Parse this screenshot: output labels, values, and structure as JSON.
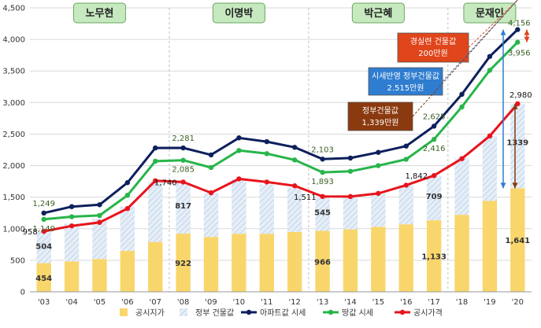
{
  "chart_data": {
    "type": "bar+line",
    "categories": [
      "'03",
      "'04",
      "'05",
      "'06",
      "'07",
      "'08",
      "'09",
      "'10",
      "'11",
      "'12",
      "'13",
      "'14",
      "'15",
      "'16",
      "'17",
      "'18",
      "'19",
      "'20"
    ],
    "ylim": [
      0,
      4500
    ],
    "yticks": [
      "0",
      "500",
      "1,000",
      "1,500",
      "2,000",
      "2,500",
      "3,000",
      "3,500",
      "4,000",
      "4,500"
    ],
    "grid": "horizontal",
    "legend_position": "bottom",
    "eras": [
      {
        "label": "노무현",
        "start": 0,
        "end": 4
      },
      {
        "label": "이명박",
        "start": 5,
        "end": 9
      },
      {
        "label": "박근혜",
        "start": 10,
        "end": 14
      },
      {
        "label": "문재인",
        "start": 15,
        "end": 17
      }
    ],
    "series": [
      {
        "name": "공시지가",
        "kind": "bar",
        "color": "#f9d66b",
        "values": [
          454,
          480,
          520,
          650,
          790,
          922,
          870,
          920,
          920,
          950,
          966,
          990,
          1030,
          1070,
          1133,
          1220,
          1440,
          1641
        ]
      },
      {
        "name": "정부 건물값",
        "kind": "bar",
        "color": "#dde7f3",
        "values": [
          504,
          600,
          640,
          700,
          960,
          817,
          700,
          860,
          780,
          700,
          545,
          520,
          520,
          620,
          709,
          900,
          1030,
          1339
        ]
      },
      {
        "name": "아파트값 시세",
        "kind": "line",
        "color": "#0d1f5c",
        "values": [
          1249,
          1350,
          1380,
          1730,
          2280,
          2281,
          2170,
          2440,
          2380,
          2290,
          2103,
          2120,
          2210,
          2310,
          2625,
          3130,
          3730,
          4156
        ]
      },
      {
        "name": "땅값 시세",
        "kind": "line",
        "color": "#27b54a",
        "values": [
          1149,
          1190,
          1210,
          1530,
          2070,
          2085,
          1970,
          2240,
          2190,
          2090,
          1893,
          1910,
          2000,
          2100,
          2416,
          2930,
          3510,
          3956
        ]
      },
      {
        "name": "공시가격",
        "kind": "line",
        "color": "#e8141c",
        "values": [
          958,
          1045,
          1100,
          1320,
          1760,
          1740,
          1570,
          1790,
          1740,
          1680,
          1511,
          1510,
          1560,
          1690,
          1842,
          2110,
          2470,
          2980
        ]
      }
    ],
    "data_labels": [
      {
        "series": 2,
        "index": 0,
        "text": "1,249"
      },
      {
        "series": 2,
        "index": 5,
        "text": "2,281"
      },
      {
        "series": 2,
        "index": 10,
        "text": "2,103"
      },
      {
        "series": 2,
        "index": 14,
        "text": "2,625"
      },
      {
        "series": 2,
        "index": 17,
        "text": "4,156"
      },
      {
        "series": 3,
        "index": 0,
        "text": "1,149"
      },
      {
        "series": 3,
        "index": 5,
        "text": "2,085"
      },
      {
        "series": 3,
        "index": 10,
        "text": "1,893"
      },
      {
        "series": 3,
        "index": 14,
        "text": "2,416"
      },
      {
        "series": 3,
        "index": 17,
        "text": "3,956"
      },
      {
        "series": 4,
        "index": 0,
        "text": "958"
      },
      {
        "series": 4,
        "index": 5,
        "text": "1,740"
      },
      {
        "series": 4,
        "index": 10,
        "text": "1,511"
      },
      {
        "series": 4,
        "index": 14,
        "text": "1,842"
      },
      {
        "series": 4,
        "index": 17,
        "text": "2,980"
      },
      {
        "series": 0,
        "index": 0,
        "text": "454"
      },
      {
        "series": 0,
        "index": 5,
        "text": "922"
      },
      {
        "series": 0,
        "index": 10,
        "text": "966"
      },
      {
        "series": 0,
        "index": 14,
        "text": "1,133"
      },
      {
        "series": 0,
        "index": 17,
        "text": "1,641"
      },
      {
        "series": 1,
        "index": 0,
        "text": "504"
      },
      {
        "series": 1,
        "index": 5,
        "text": "817"
      },
      {
        "series": 1,
        "index": 10,
        "text": "545"
      },
      {
        "series": 1,
        "index": 14,
        "text": "709"
      },
      {
        "series": 1,
        "index": 17,
        "text": "1339"
      }
    ],
    "annotations": [
      {
        "lines": [
          "경실련 건물값",
          "200만원"
        ],
        "fill": "#e0451b",
        "text_color": "#ffffff",
        "points_to_value": 4156
      },
      {
        "lines": [
          "시세반영 정부건물값",
          "2.515만원"
        ],
        "fill": "#2f7dd0",
        "text_color": "#ffffff",
        "points_to_value": 3750
      },
      {
        "lines": [
          "정부건물값",
          "1,339만원"
        ],
        "fill": "#8b3a0f",
        "text_color": "#ffffff",
        "points_to_value": 2980
      }
    ]
  }
}
